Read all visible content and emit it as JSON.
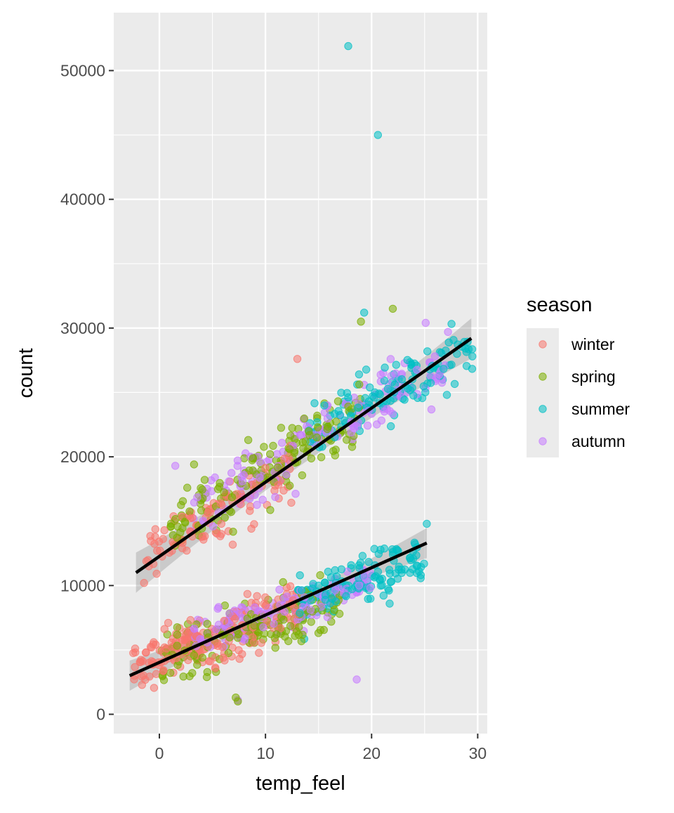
{
  "chart_data": {
    "type": "scatter",
    "title": "",
    "xlabel": "temp_feel",
    "ylabel": "count",
    "xlim": [
      -4.3,
      30.9
    ],
    "ylim": [
      -1500,
      54500
    ],
    "x_ticks": [
      0,
      10,
      20,
      30
    ],
    "y_ticks": [
      0,
      10000,
      20000,
      30000,
      40000,
      50000
    ],
    "x_tick_labels": [
      "0",
      "10",
      "20",
      "30"
    ],
    "y_tick_labels": [
      "0",
      "10000",
      "20000",
      "30000",
      "40000",
      "50000"
    ],
    "grid": true,
    "legend": {
      "title": "season",
      "position": "right",
      "entries": [
        {
          "label": "winter",
          "color": "#F8766D"
        },
        {
          "label": "spring",
          "color": "#7CAE00"
        },
        {
          "label": "summer",
          "color": "#00BFC4"
        },
        {
          "label": "autumn",
          "color": "#C77CFF"
        }
      ]
    },
    "series": [
      {
        "name": "winter",
        "color": "#F8766D",
        "clusters": [
          {
            "x_range": [
              -2.5,
              13
            ],
            "y_center": 6000,
            "y_spread": 2800,
            "slope": 280,
            "n": 210
          },
          {
            "x_range": [
              -1.5,
              13
            ],
            "y_center": 15500,
            "y_spread": 3200,
            "slope": 450,
            "n": 110
          }
        ],
        "points": [
          [
            13,
            27600
          ]
        ]
      },
      {
        "name": "spring",
        "color": "#7CAE00",
        "clusters": [
          {
            "x_range": [
              0,
              17
            ],
            "y_center": 6500,
            "y_spread": 3000,
            "slope": 250,
            "n": 150
          },
          {
            "x_range": [
              1,
              19
            ],
            "y_center": 19000,
            "y_spread": 3500,
            "slope": 500,
            "n": 150
          }
        ],
        "points": [
          [
            7.2,
            1300
          ],
          [
            7.4,
            1000
          ],
          [
            22,
            31500
          ],
          [
            19,
            30500
          ]
        ]
      },
      {
        "name": "summer",
        "color": "#00BFC4",
        "clusters": [
          {
            "x_range": [
              13,
              25
            ],
            "y_center": 10500,
            "y_spread": 2600,
            "slope": 280,
            "n": 130
          },
          {
            "x_range": [
              14,
              29.5
            ],
            "y_center": 25000,
            "y_spread": 3200,
            "slope": 450,
            "n": 130
          }
        ],
        "points": [
          [
            17.8,
            51900
          ],
          [
            20.6,
            45000
          ],
          [
            19.3,
            31200
          ],
          [
            29.5,
            27800
          ],
          [
            25.2,
            14800
          ],
          [
            21.7,
            8600
          ]
        ]
      },
      {
        "name": "autumn",
        "color": "#C77CFF",
        "clusters": [
          {
            "x_range": [
              3,
              20
            ],
            "y_center": 8000,
            "y_spread": 2400,
            "slope": 260,
            "n": 150
          },
          {
            "x_range": [
              3,
              27
            ],
            "y_center": 21500,
            "y_spread": 3300,
            "slope": 460,
            "n": 150
          }
        ],
        "points": [
          [
            18.6,
            2700
          ],
          [
            25.1,
            30400
          ],
          [
            27.2,
            29700
          ],
          [
            1.5,
            19300
          ],
          [
            7.4,
            1100
          ]
        ]
      }
    ],
    "trend_lines": [
      {
        "x": [
          -2.2,
          29.4
        ],
        "y": [
          11000,
          29200
        ],
        "ci": 600
      },
      {
        "x": [
          -2.8,
          25.2
        ],
        "y": [
          3000,
          13300
        ],
        "ci": 450
      }
    ]
  }
}
